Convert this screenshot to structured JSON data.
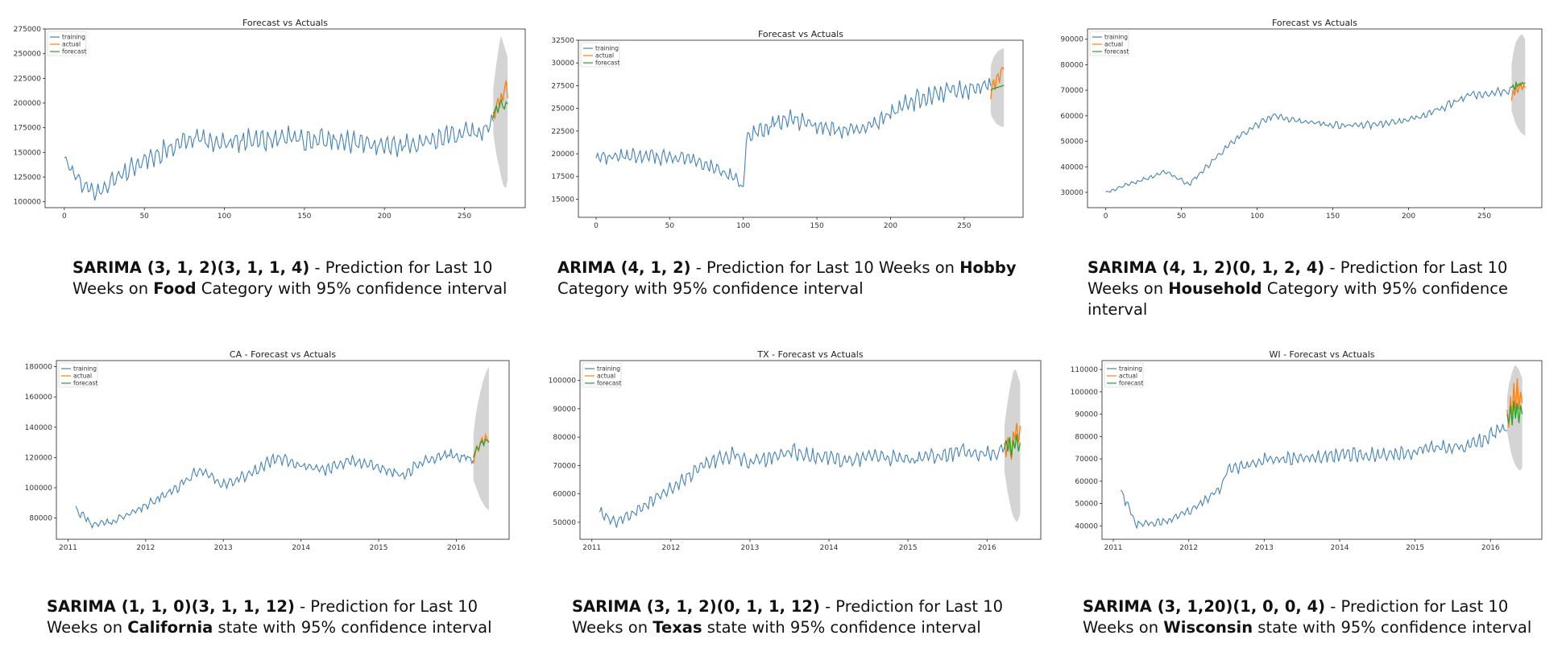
{
  "colors": {
    "training": "#4682b4",
    "actual": "#ff7f0e",
    "forecast": "#2ca02c",
    "band": "#d4d4d4"
  },
  "legend_labels": [
    "training",
    "actual",
    "forecast"
  ],
  "chart_data": [
    {
      "type": "line",
      "title": "Forecast vs Actuals",
      "xticks": [
        0,
        50,
        100,
        150,
        200,
        250
      ],
      "xlim": [
        -12,
        288
      ],
      "yticks": [
        100000,
        125000,
        150000,
        175000,
        200000,
        225000,
        250000,
        275000
      ],
      "ylim": [
        94000,
        275000
      ],
      "train_end": 268,
      "forecast_end": 277,
      "noise": 0.17,
      "seed": 11,
      "training_profile": [
        [
          0,
          145000
        ],
        [
          10,
          120000
        ],
        [
          20,
          108000
        ],
        [
          35,
          128000
        ],
        [
          60,
          150000
        ],
        [
          80,
          165000
        ],
        [
          100,
          160000
        ],
        [
          140,
          165000
        ],
        [
          180,
          160000
        ],
        [
          200,
          157000
        ],
        [
          230,
          162000
        ],
        [
          268,
          175000
        ]
      ],
      "actual": [
        191000,
        184000,
        198000,
        205000,
        195000,
        210000,
        202000,
        214000,
        223000,
        205000
      ],
      "forecast": [
        185000,
        193000,
        197000,
        190000,
        199000,
        203000,
        196000,
        194000,
        201000,
        199000
      ],
      "band_upper": [
        215000,
        228000,
        240000,
        251000,
        262000,
        268000,
        262000,
        257000,
        252000,
        246000
      ],
      "band_lower": [
        170000,
        158000,
        148000,
        140000,
        133000,
        125000,
        118000,
        115000,
        114000,
        122000
      ],
      "series": [
        {
          "name": "training"
        },
        {
          "name": "actual"
        },
        {
          "name": "forecast"
        }
      ]
    },
    {
      "type": "line",
      "title": "Forecast vs Actuals",
      "xticks": [
        0,
        50,
        100,
        150,
        200,
        250
      ],
      "xlim": [
        -12,
        290
      ],
      "yticks": [
        15000,
        17500,
        20000,
        22500,
        25000,
        27500,
        30000,
        32500
      ],
      "ylim": [
        13000,
        32500
      ],
      "train_end": 268,
      "forecast_end": 277,
      "noise": 0.1,
      "seed": 23,
      "training_profile": [
        [
          0,
          19500
        ],
        [
          20,
          19800
        ],
        [
          60,
          19400
        ],
        [
          80,
          18500
        ],
        [
          95,
          17200
        ],
        [
          100,
          16000
        ],
        [
          102,
          22000
        ],
        [
          130,
          24000
        ],
        [
          150,
          23000
        ],
        [
          180,
          22500
        ],
        [
          210,
          25500
        ],
        [
          240,
          27000
        ],
        [
          268,
          27500
        ]
      ],
      "actual": [
        26000,
        27500,
        28200,
        27000,
        28500,
        28800,
        27800,
        29200,
        29500,
        29300
      ],
      "forecast": [
        27000,
        27100,
        27200,
        27200,
        27300,
        27300,
        27400,
        27400,
        27500,
        27500
      ],
      "band_upper": [
        29500,
        30200,
        30600,
        30900,
        31100,
        31300,
        31400,
        31500,
        31600,
        31600
      ],
      "band_lower": [
        24500,
        24000,
        23800,
        23500,
        23300,
        23200,
        23100,
        23000,
        23000,
        23000
      ],
      "series": [
        {
          "name": "training"
        },
        {
          "name": "actual"
        },
        {
          "name": "forecast"
        }
      ]
    },
    {
      "type": "line",
      "title": "Forecast vs Actuals",
      "xticks": [
        0,
        50,
        100,
        150,
        200,
        250
      ],
      "xlim": [
        -12,
        288
      ],
      "yticks": [
        30000,
        40000,
        50000,
        60000,
        70000,
        80000,
        90000
      ],
      "ylim": [
        24000,
        94000
      ],
      "train_end": 268,
      "forecast_end": 277,
      "noise": 0.06,
      "seed": 37,
      "training_profile": [
        [
          0,
          30000
        ],
        [
          20,
          34000
        ],
        [
          40,
          38000
        ],
        [
          55,
          33000
        ],
        [
          70,
          42000
        ],
        [
          90,
          53000
        ],
        [
          110,
          60000
        ],
        [
          140,
          57000
        ],
        [
          160,
          56000
        ],
        [
          190,
          57000
        ],
        [
          210,
          60000
        ],
        [
          240,
          68000
        ],
        [
          268,
          70000
        ]
      ],
      "actual": [
        66000,
        70000,
        68000,
        72000,
        69000,
        71000,
        73000,
        70000,
        72000,
        71000
      ],
      "forecast": [
        71000,
        72000,
        70000,
        73000,
        71500,
        72500,
        72000,
        73000,
        72500,
        73000
      ],
      "band_upper": [
        80000,
        84000,
        87000,
        89000,
        90000,
        91000,
        91500,
        92000,
        91000,
        90000
      ],
      "band_lower": [
        62000,
        60000,
        58000,
        56500,
        55500,
        54500,
        53500,
        53000,
        52500,
        52000
      ],
      "series": [
        {
          "name": "training"
        },
        {
          "name": "actual"
        },
        {
          "name": "forecast"
        }
      ]
    },
    {
      "type": "line",
      "title": "CA - Forecast vs Actuals",
      "xticks": [
        "2011",
        "2012",
        "2013",
        "2014",
        "2015",
        "2016"
      ],
      "xlim": [
        2010.85,
        2016.68
      ],
      "yticks": [
        80000,
        100000,
        120000,
        140000,
        160000,
        180000
      ],
      "ylim": [
        66000,
        184000
      ],
      "train_end": 2016.22,
      "forecast_end": 2016.42,
      "noise": 0.08,
      "seed": 41,
      "training_profile": [
        [
          2011.1,
          86000
        ],
        [
          2011.3,
          76000
        ],
        [
          2011.6,
          78000
        ],
        [
          2012.0,
          88000
        ],
        [
          2012.4,
          100000
        ],
        [
          2012.7,
          112000
        ],
        [
          2013.0,
          102000
        ],
        [
          2013.3,
          108000
        ],
        [
          2013.7,
          120000
        ],
        [
          2014.0,
          114000
        ],
        [
          2014.3,
          112000
        ],
        [
          2014.6,
          118000
        ],
        [
          2015.0,
          114000
        ],
        [
          2015.3,
          108000
        ],
        [
          2015.6,
          118000
        ],
        [
          2015.9,
          122000
        ],
        [
          2016.22,
          118000
        ]
      ],
      "actual": [
        116000,
        122000,
        128000,
        124000,
        130000,
        133000,
        128000,
        135000,
        132000,
        130000
      ],
      "forecast": [
        120000,
        124000,
        127000,
        125000,
        129000,
        131000,
        128000,
        132000,
        131000,
        130000
      ],
      "band_upper": [
        135000,
        145000,
        152000,
        158000,
        163000,
        168000,
        172000,
        175000,
        178000,
        180000
      ],
      "band_lower": [
        105000,
        102000,
        99000,
        96000,
        93000,
        91000,
        89000,
        87000,
        86000,
        85000
      ],
      "series": [
        {
          "name": "training"
        },
        {
          "name": "actual"
        },
        {
          "name": "forecast"
        }
      ]
    },
    {
      "type": "line",
      "title": "TX - Forecast vs Actuals",
      "xticks": [
        "2011",
        "2012",
        "2013",
        "2014",
        "2015",
        "2016"
      ],
      "xlim": [
        2010.85,
        2016.68
      ],
      "yticks": [
        50000,
        60000,
        70000,
        80000,
        90000,
        100000
      ],
      "ylim": [
        44000,
        107000
      ],
      "train_end": 2016.22,
      "forecast_end": 2016.42,
      "noise": 0.09,
      "seed": 53,
      "training_profile": [
        [
          2011.1,
          54000
        ],
        [
          2011.3,
          50000
        ],
        [
          2011.7,
          56000
        ],
        [
          2012.0,
          62000
        ],
        [
          2012.4,
          70000
        ],
        [
          2012.8,
          74000
        ],
        [
          2013.0,
          71000
        ],
        [
          2013.5,
          75000
        ],
        [
          2013.9,
          73000
        ],
        [
          2014.2,
          72000
        ],
        [
          2014.6,
          73000
        ],
        [
          2015.0,
          72000
        ],
        [
          2015.3,
          73000
        ],
        [
          2015.7,
          75000
        ],
        [
          2016.0,
          74000
        ],
        [
          2016.22,
          76000
        ]
      ],
      "actual": [
        78000,
        73000,
        80000,
        76000,
        72000,
        82000,
        79000,
        85000,
        78000,
        84000
      ],
      "forecast": [
        76000,
        79000,
        75000,
        80000,
        73000,
        79000,
        76000,
        81000,
        75000,
        78000
      ],
      "band_upper": [
        84000,
        89000,
        93000,
        97000,
        100000,
        103000,
        104000,
        103000,
        101000,
        99000
      ],
      "band_lower": [
        68000,
        64000,
        60000,
        57000,
        54000,
        52000,
        51000,
        50000,
        51000,
        53000
      ],
      "series": [
        {
          "name": "training"
        },
        {
          "name": "actual"
        },
        {
          "name": "forecast"
        }
      ]
    },
    {
      "type": "line",
      "title": "WI - Forecast vs Actuals",
      "xticks": [
        "2011",
        "2012",
        "2013",
        "2014",
        "2015",
        "2016"
      ],
      "xlim": [
        2010.85,
        2016.68
      ],
      "yticks": [
        40000,
        50000,
        60000,
        70000,
        80000,
        90000,
        100000,
        110000
      ],
      "ylim": [
        34000,
        114000
      ],
      "train_end": 2016.22,
      "forecast_end": 2016.42,
      "noise": 0.1,
      "seed": 67,
      "training_profile": [
        [
          2011.1,
          56000
        ],
        [
          2011.3,
          41000
        ],
        [
          2011.7,
          42000
        ],
        [
          2012.0,
          46000
        ],
        [
          2012.4,
          56000
        ],
        [
          2012.5,
          64000
        ],
        [
          2013.0,
          70000
        ],
        [
          2013.5,
          70000
        ],
        [
          2014.0,
          72000
        ],
        [
          2014.5,
          72000
        ],
        [
          2015.0,
          73000
        ],
        [
          2015.3,
          75000
        ],
        [
          2015.7,
          76000
        ],
        [
          2016.0,
          80000
        ],
        [
          2016.22,
          86000
        ]
      ],
      "actual": [
        92000,
        84000,
        98000,
        88000,
        104000,
        90000,
        106000,
        92000,
        100000,
        95000
      ],
      "forecast": [
        90000,
        86000,
        94000,
        85000,
        96000,
        88000,
        95000,
        86000,
        94000,
        90000
      ],
      "band_upper": [
        98000,
        103000,
        106000,
        109000,
        111000,
        112000,
        111000,
        110000,
        108000,
        106000
      ],
      "band_lower": [
        82000,
        78000,
        74000,
        71000,
        69000,
        67000,
        66000,
        65000,
        65000,
        66000
      ],
      "series": [
        {
          "name": "training"
        },
        {
          "name": "actual"
        },
        {
          "name": "forecast"
        }
      ]
    }
  ],
  "captions": [
    {
      "model": "SARIMA (3, 1, 2)(3, 1, 1, 4)",
      "mid": " - Prediction for Last 10 Weeks on ",
      "name": "Food",
      "tail": " Category with 95% confidence interval"
    },
    {
      "model": "ARIMA (4, 1, 2)",
      "mid": " - Prediction for Last 10 Weeks on ",
      "name": "Hobby",
      "tail": " Category with 95% confidence interval"
    },
    {
      "model": "SARIMA (4, 1, 2)(0, 1, 2, 4)",
      "mid": " - Prediction for Last 10 Weeks on ",
      "name": "Household",
      "tail": " Category with 95% confidence interval"
    },
    {
      "model": "SARIMA (1, 1, 0)(3, 1, 1, 12)",
      "mid": " - Prediction for Last 10 Weeks on ",
      "name": "California",
      "tail": " state with 95% confidence interval"
    },
    {
      "model": "SARIMA (3, 1, 2)(0, 1, 1, 12)",
      "mid": " - Prediction for Last 10 Weeks on ",
      "name": "Texas",
      "tail": " state with 95% confidence interval"
    },
    {
      "model": "SARIMA (3, 1,20)(1, 0, 0, 4)",
      "mid": " - Prediction for Last 10 Weeks on ",
      "name": "Wisconsin",
      "tail": " state with 95% confidence interval"
    }
  ]
}
